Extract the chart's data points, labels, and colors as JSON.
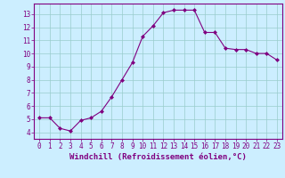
{
  "x": [
    0,
    1,
    2,
    3,
    4,
    5,
    6,
    7,
    8,
    9,
    10,
    11,
    12,
    13,
    14,
    15,
    16,
    17,
    18,
    19,
    20,
    21,
    22,
    23
  ],
  "y": [
    5.1,
    5.1,
    4.3,
    4.1,
    4.9,
    5.1,
    5.6,
    6.7,
    8.0,
    9.3,
    11.3,
    12.1,
    13.1,
    13.3,
    13.3,
    13.3,
    11.6,
    11.6,
    10.4,
    10.3,
    10.3,
    10.0,
    10.0,
    9.5
  ],
  "xlim": [
    -0.5,
    23.5
  ],
  "ylim": [
    3.5,
    13.8
  ],
  "yticks": [
    4,
    5,
    6,
    7,
    8,
    9,
    10,
    11,
    12,
    13
  ],
  "xticks": [
    0,
    1,
    2,
    3,
    4,
    5,
    6,
    7,
    8,
    9,
    10,
    11,
    12,
    13,
    14,
    15,
    16,
    17,
    18,
    19,
    20,
    21,
    22,
    23
  ],
  "xlabel": "Windchill (Refroidissement éolien,°C)",
  "line_color": "#800080",
  "marker": "D",
  "marker_size": 2.0,
  "bg_color": "#cceeff",
  "grid_color": "#99cccc",
  "tick_label_color": "#800080",
  "axis_label_color": "#800080",
  "tick_fontsize": 5.5,
  "xlabel_fontsize": 6.5,
  "linewidth": 0.8
}
